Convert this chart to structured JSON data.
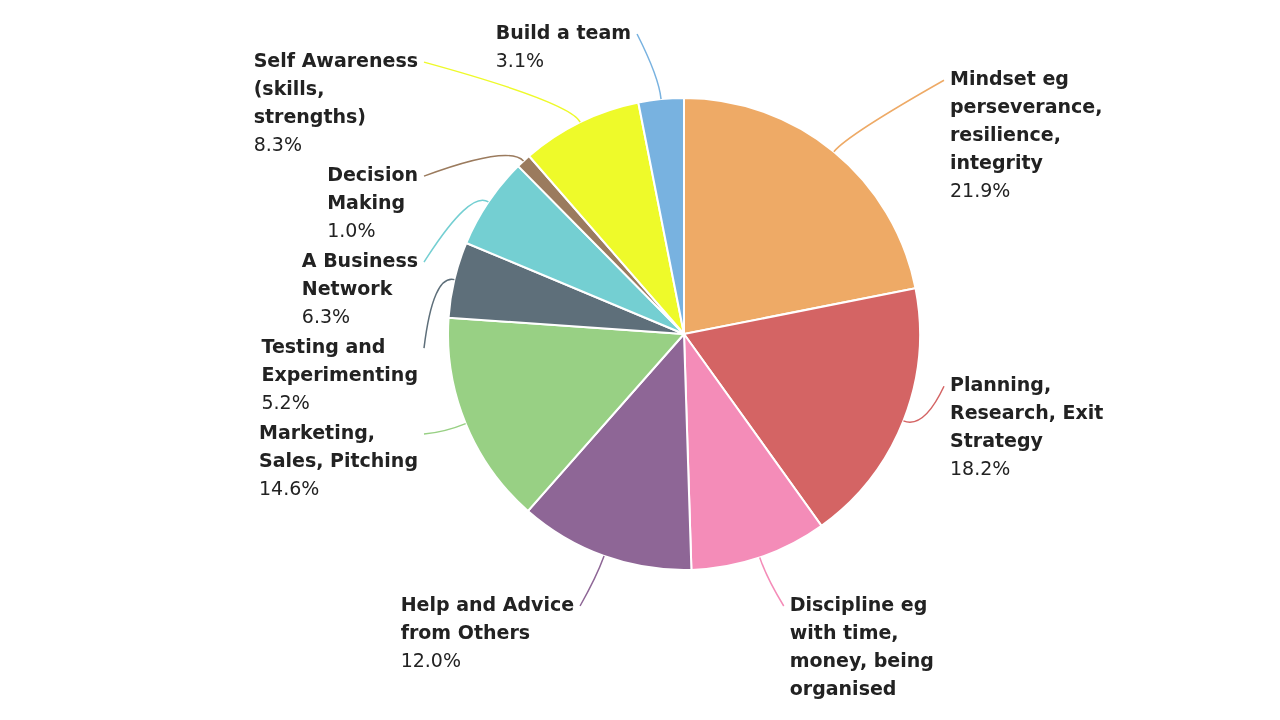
{
  "chart_data": {
    "type": "pie",
    "categories": [
      "Mindset eg perseverance, resilience, integrity",
      "Planning, Research, Exit Strategy",
      "Discipline eg with time, money, being organised",
      "Help and Advice from Others",
      "Marketing, Sales, Pitching",
      "Testing and Experimenting",
      "A Business Network",
      "Decision Making",
      "Self Awareness (skills, strengths)",
      "Build a team"
    ],
    "values": [
      21.9,
      18.2,
      9.4,
      12.0,
      14.6,
      5.2,
      6.3,
      1.0,
      8.3,
      3.1
    ],
    "colors": [
      "#eeaa66",
      "#d46464",
      "#f48cb8",
      "#8e6696",
      "#98d084",
      "#5e6f7a",
      "#74cfd2",
      "#9b7b5e",
      "#eefa2a",
      "#78b2e0"
    ],
    "value_labels": [
      "21.9%",
      "18.2%",
      null,
      "12.0%",
      "14.6%",
      "5.2%",
      "6.3%",
      "1.0%",
      "8.3%",
      "3.1%"
    ],
    "legend": false
  }
}
